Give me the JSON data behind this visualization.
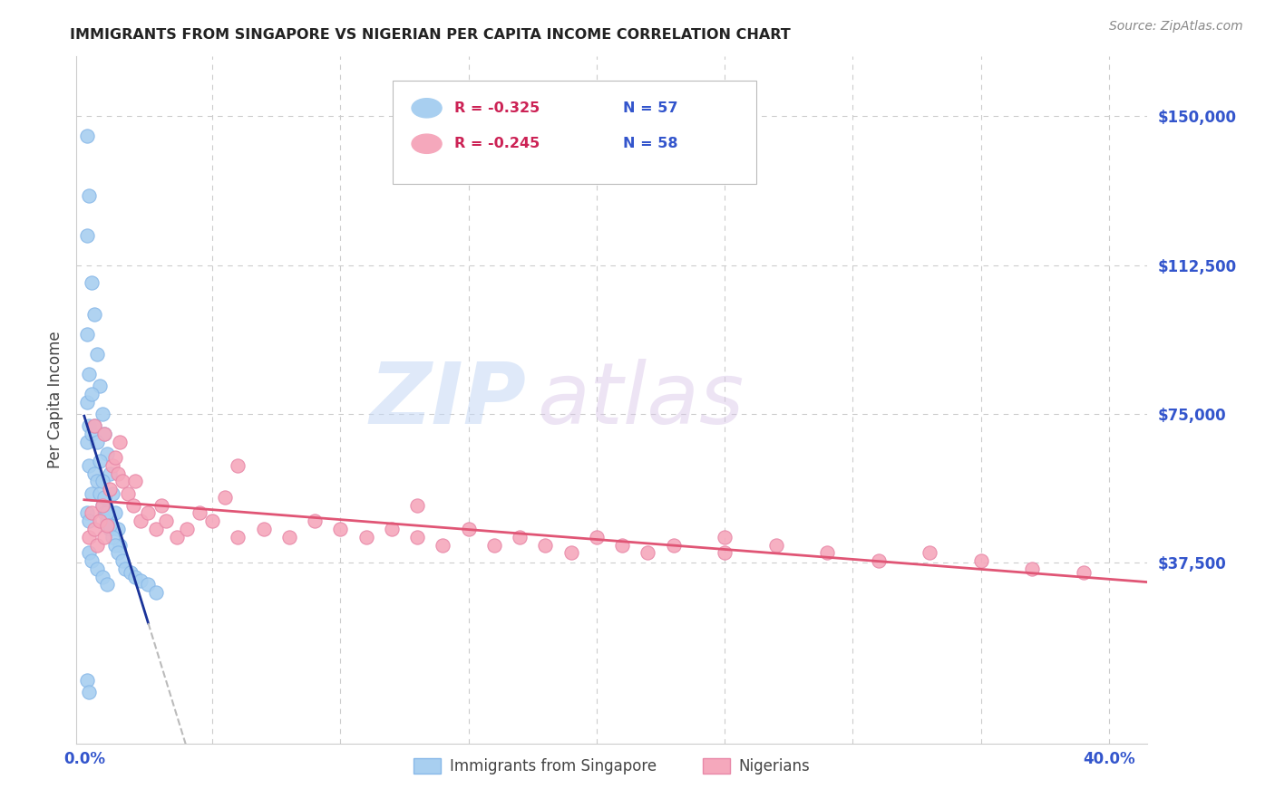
{
  "title": "IMMIGRANTS FROM SINGAPORE VS NIGERIAN PER CAPITA INCOME CORRELATION CHART",
  "source": "Source: ZipAtlas.com",
  "ylabel": "Per Capita Income",
  "y_ticks": [
    0,
    37500,
    75000,
    112500,
    150000
  ],
  "y_tick_labels": [
    "",
    "$37,500",
    "$75,000",
    "$112,500",
    "$150,000"
  ],
  "xlim": [
    -0.003,
    0.415
  ],
  "ylim": [
    -8000,
    165000
  ],
  "legend_entries": [
    {
      "r_label": "R = -0.325",
      "n_label": "N = 57",
      "color": "#a8cff0"
    },
    {
      "r_label": "R = -0.245",
      "n_label": "N = 58",
      "color": "#f5a8bc"
    }
  ],
  "legend_labels_bottom": [
    "Immigrants from Singapore",
    "Nigerians"
  ],
  "watermark_zip": "ZIP",
  "watermark_atlas": "atlas",
  "title_color": "#222222",
  "source_color": "#888888",
  "axis_label_color": "#444444",
  "tick_color": "#3355cc",
  "grid_color": "#cccccc",
  "blue_scatter_color": "#a8cff0",
  "pink_scatter_color": "#f5a8bc",
  "blue_line_color": "#1a3399",
  "pink_line_color": "#e05575",
  "dashed_line_color": "#bbbbbb",
  "r_text_color": "#cc2255",
  "n_text_color": "#3355cc"
}
